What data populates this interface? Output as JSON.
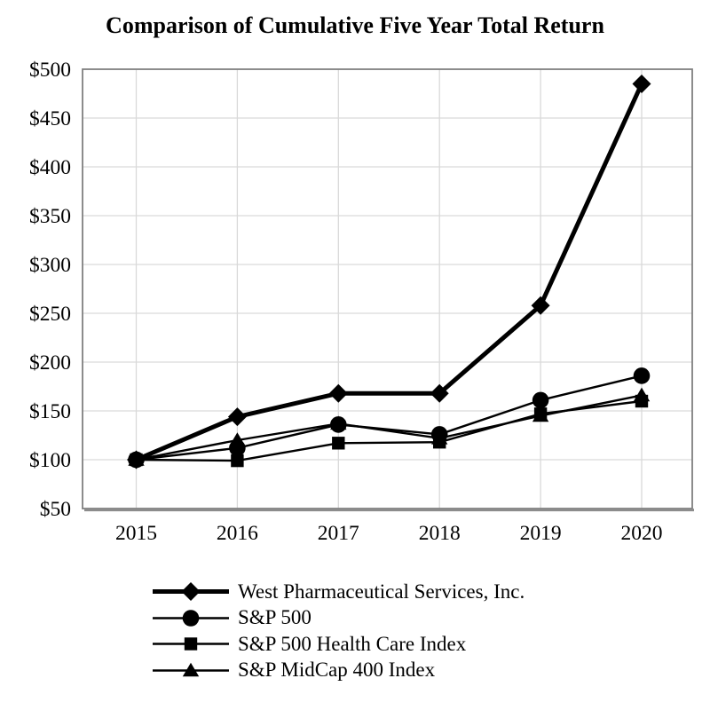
{
  "title": "Comparison of Cumulative Five Year Total Return",
  "chart_data": {
    "type": "line",
    "x": [
      "2015",
      "2016",
      "2017",
      "2018",
      "2019",
      "2020"
    ],
    "series": [
      {
        "name": "West Pharmaceutical Services, Inc.",
        "marker": "diamond",
        "line": "thick",
        "values": [
          100,
          144,
          168,
          168,
          258,
          485
        ]
      },
      {
        "name": "S&P 500",
        "marker": "circle",
        "line": "thin",
        "values": [
          100,
          112,
          136,
          126,
          161,
          186
        ]
      },
      {
        "name": "S&P 500 Health Care Index",
        "marker": "square",
        "line": "thin",
        "values": [
          100,
          99,
          117,
          118,
          147,
          160
        ]
      },
      {
        "name": "S&P MidCap 400 Index",
        "marker": "triangle",
        "line": "thin",
        "values": [
          100,
          120,
          137,
          122,
          145,
          166
        ]
      }
    ],
    "y_ticks": [
      "$500",
      "$450",
      "$400",
      "$350",
      "$300",
      "$250",
      "$200",
      "$150",
      "$100",
      "$50"
    ],
    "ylim": [
      50,
      500
    ],
    "y_tick_step": 50,
    "xlabel": "",
    "ylabel": "",
    "grid": true,
    "legend_position": "bottom-left",
    "colors": {
      "series": "#000000",
      "grid": "#d9d9d9",
      "frame": "#808080",
      "frame_shadow": "#8c8c8c",
      "background": "#ffffff"
    }
  }
}
